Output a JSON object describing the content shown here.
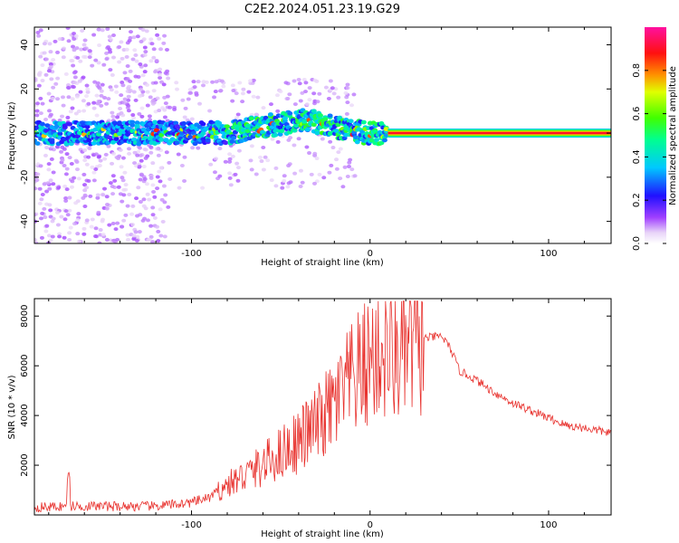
{
  "title": "C2E2.2024.051.23.19.G29",
  "chart_data": [
    {
      "type": "heatmap",
      "xlabel": "Height of straight line (km)",
      "ylabel": "Frequency (Hz)",
      "xlim": [
        -188,
        135
      ],
      "ylim": [
        -50,
        48
      ],
      "xticks": [
        -100,
        0,
        100
      ],
      "yticks": [
        -40,
        -20,
        0,
        20,
        40
      ],
      "ridge_x": [
        -188,
        -150,
        -100,
        -80,
        -60,
        -45,
        -38,
        -30,
        -20,
        -10,
        0,
        10,
        135
      ],
      "ridge_y": [
        0,
        0,
        0,
        0,
        3,
        5,
        6,
        5,
        3,
        1,
        0,
        0,
        0
      ],
      "colorbar": {
        "label": "Normalized spectral amplitude",
        "range": [
          0,
          1
        ],
        "ticks": [
          0.0,
          0.2,
          0.4,
          0.6,
          0.8
        ],
        "tick_labels": [
          "0.0",
          "0.2",
          "0.4",
          "0.6",
          "0.8"
        ]
      }
    },
    {
      "type": "line",
      "xlabel": "Height of straight line (km)",
      "ylabel": "SNR (10 * v/v)",
      "xlim": [
        -188,
        135
      ],
      "ylim": [
        0,
        8700
      ],
      "xticks": [
        -100,
        0,
        100
      ],
      "yticks": [
        2000,
        4000,
        6000,
        8000
      ],
      "color": "#e8322e",
      "x": [
        -188,
        -170,
        -150,
        -120,
        -100,
        -90,
        -80,
        -70,
        -60,
        -50,
        -40,
        -30,
        -20,
        -10,
        0,
        5,
        10,
        20,
        30,
        40,
        45,
        50,
        60,
        70,
        80,
        90,
        100,
        110,
        120,
        135
      ],
      "y": [
        300,
        350,
        350,
        350,
        500,
        700,
        1200,
        1600,
        2000,
        2500,
        3000,
        3600,
        4400,
        5400,
        6200,
        6600,
        6400,
        6500,
        7100,
        7200,
        6700,
        5800,
        5400,
        4900,
        4500,
        4200,
        3900,
        3600,
        3500,
        3300
      ]
    }
  ]
}
